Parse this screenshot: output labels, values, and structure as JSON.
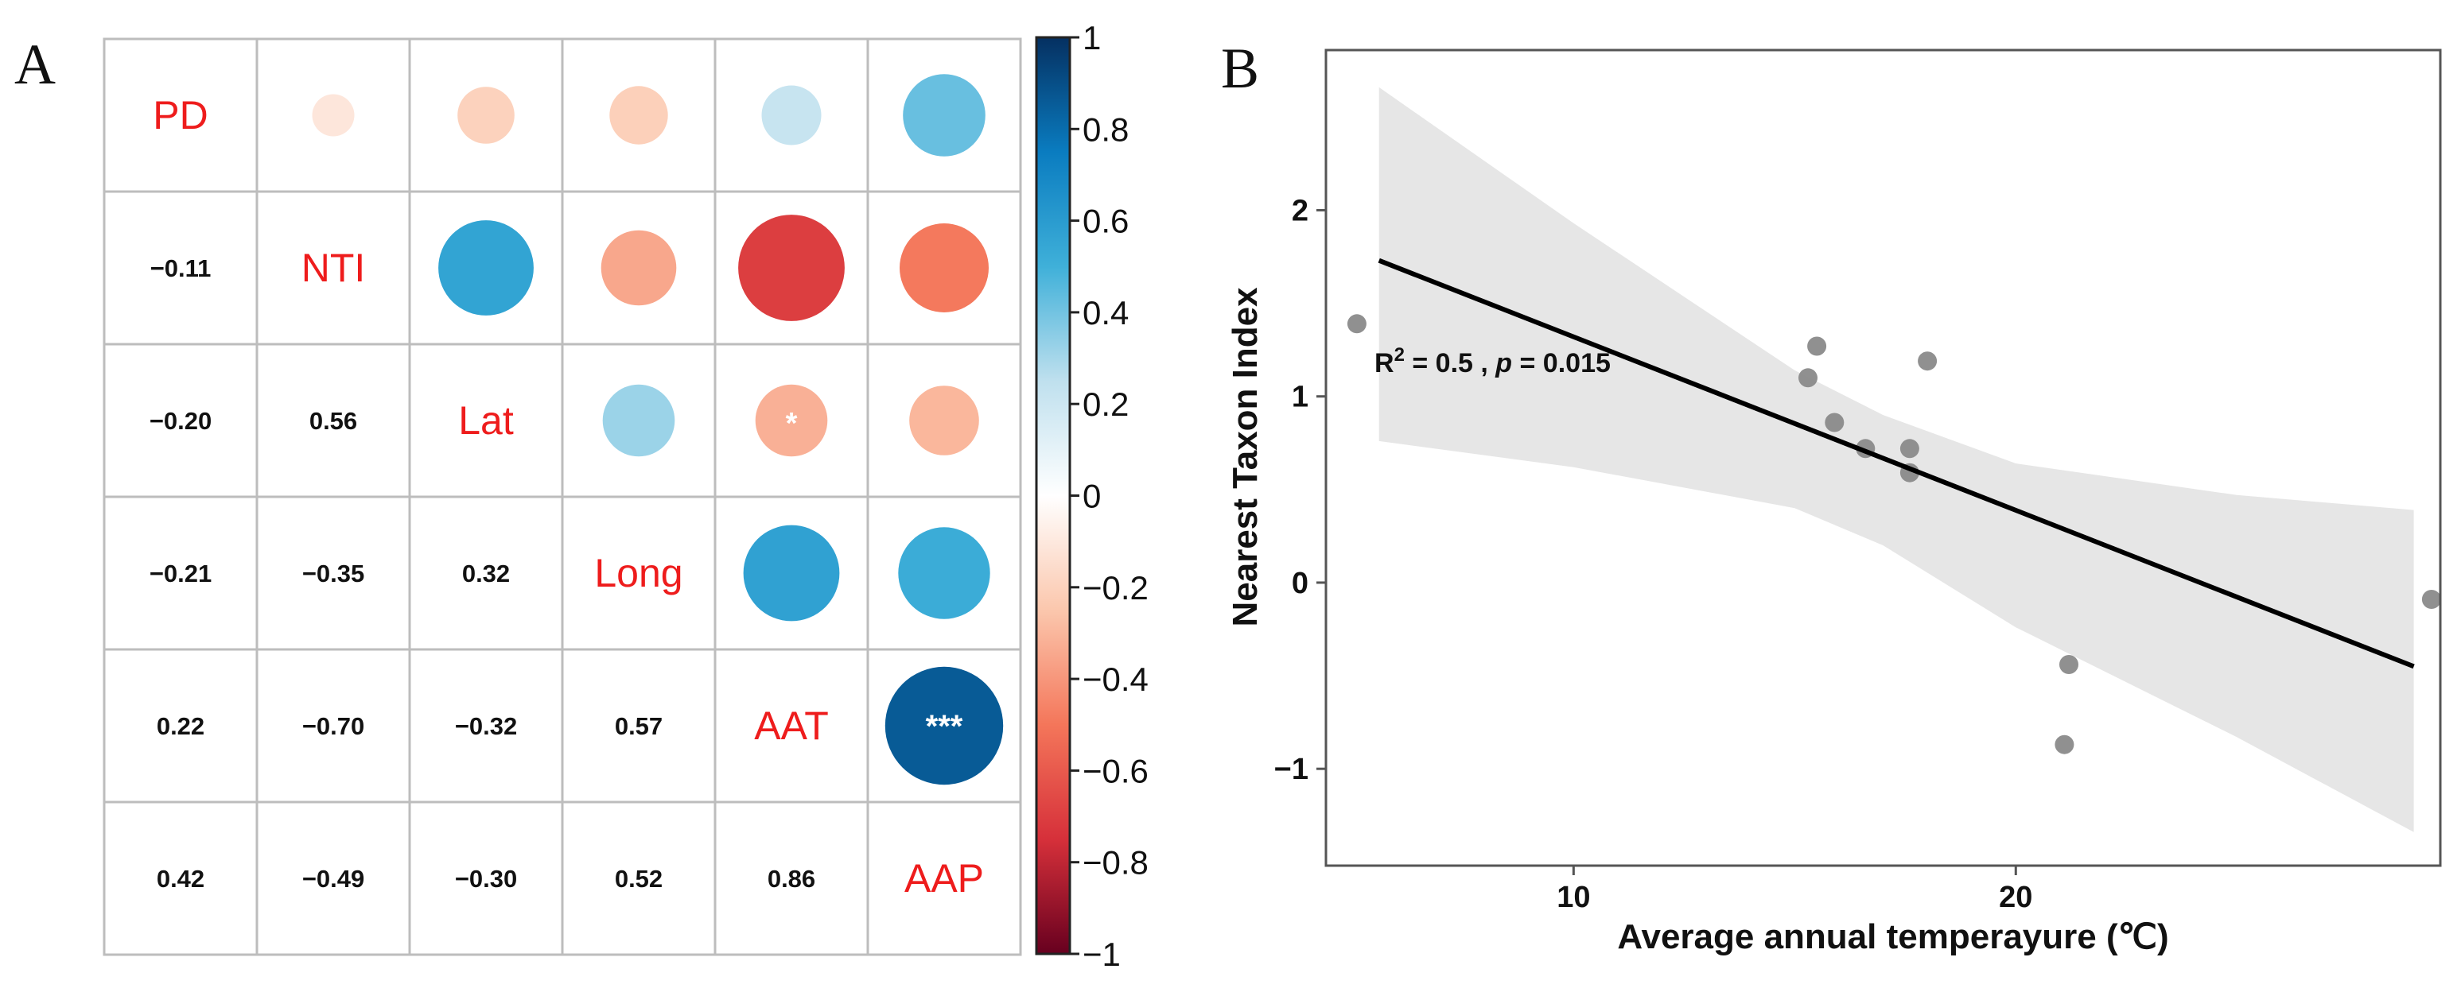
{
  "panel_a": {
    "letter": "A",
    "chart_data": {
      "type": "correlation-matrix",
      "variables": [
        "PD",
        "NTI",
        "Lat",
        "Long",
        "AAT",
        "AAP"
      ],
      "matrix": [
        [
          1,
          -0.11,
          -0.2,
          -0.21,
          0.22,
          0.42
        ],
        [
          -0.11,
          1,
          0.56,
          -0.35,
          -0.7,
          -0.49
        ],
        [
          -0.2,
          0.56,
          1,
          0.32,
          -0.32,
          -0.3
        ],
        [
          -0.21,
          -0.35,
          0.32,
          1,
          0.57,
          0.52
        ],
        [
          0.22,
          -0.7,
          -0.32,
          0.57,
          1,
          0.86
        ],
        [
          0.42,
          -0.49,
          -0.3,
          0.52,
          0.86,
          1
        ]
      ],
      "lower_text": [
        [
          "",
          "",
          "",
          "",
          "",
          ""
        ],
        [
          "−0.11",
          "",
          "",
          "",
          "",
          ""
        ],
        [
          "−0.20",
          "0.56",
          "",
          "",
          "",
          ""
        ],
        [
          "−0.21",
          "−0.35",
          "0.32",
          "",
          "",
          ""
        ],
        [
          "0.22",
          "−0.70",
          "−0.32",
          "0.57",
          "",
          ""
        ],
        [
          "0.42",
          "−0.49",
          "−0.30",
          "0.52",
          "0.86",
          ""
        ]
      ],
      "significance": [
        {
          "row": 2,
          "col": 4,
          "mark": "*"
        },
        {
          "row": 4,
          "col": 5,
          "mark": "***"
        }
      ],
      "colorbar": {
        "range": [
          -1,
          1
        ],
        "ticks": [
          1,
          0.8,
          0.6,
          0.4,
          0.2,
          0,
          -0.2,
          -0.4,
          -0.6,
          -0.8,
          -1
        ],
        "tick_labels": [
          "1",
          "0.8",
          "0.6",
          "0.4",
          "0.2",
          "0",
          "−0.2",
          "−0.4",
          "−0.6",
          "−0.8",
          "−1"
        ],
        "stops": [
          {
            "v": -1,
            "color": "#67001f"
          },
          {
            "v": -0.75,
            "color": "#d6303a"
          },
          {
            "v": -0.5,
            "color": "#f4765a"
          },
          {
            "v": -0.25,
            "color": "#fbc7ad"
          },
          {
            "v": 0,
            "color": "#ffffff"
          },
          {
            "v": 0.25,
            "color": "#bfe0ee"
          },
          {
            "v": 0.5,
            "color": "#3fb0d9"
          },
          {
            "v": 0.75,
            "color": "#0a7cc0"
          },
          {
            "v": 1,
            "color": "#053061"
          }
        ]
      }
    }
  },
  "panel_b": {
    "letter": "B",
    "chart_data": {
      "type": "scatter",
      "xlabel": "Average annual temperayure (℃)",
      "ylabel": "Nearest Taxon Index",
      "xlim": [
        4.4,
        29.6
      ],
      "ylim": [
        -1.52,
        2.86
      ],
      "xticks": [
        10,
        20
      ],
      "yticks": [
        2,
        1,
        0,
        -1
      ],
      "ytick_labels": [
        "2",
        "1",
        "0",
        "−1"
      ],
      "points": [
        {
          "x": 5.1,
          "y": 1.39
        },
        {
          "x": 15.5,
          "y": 1.27
        },
        {
          "x": 15.3,
          "y": 1.1
        },
        {
          "x": 18.0,
          "y": 1.19
        },
        {
          "x": 15.9,
          "y": 0.86
        },
        {
          "x": 16.6,
          "y": 0.72
        },
        {
          "x": 17.6,
          "y": 0.72
        },
        {
          "x": 17.6,
          "y": 0.59
        },
        {
          "x": 21.2,
          "y": -0.44
        },
        {
          "x": 21.1,
          "y": -0.87
        },
        {
          "x": 29.4,
          "y": -0.09
        }
      ],
      "fit_line": {
        "x": [
          5.6,
          29.0
        ],
        "y": [
          1.73,
          -0.45
        ]
      },
      "confidence_band": {
        "x": [
          5.6,
          10,
          15,
          17,
          20,
          25,
          29.0
        ],
        "upper": [
          2.66,
          1.93,
          1.14,
          0.9,
          0.64,
          0.47,
          0.39
        ],
        "lower": [
          0.76,
          0.62,
          0.4,
          0.2,
          -0.24,
          -0.83,
          -1.34
        ]
      },
      "annotation": {
        "r_label": "R",
        "r_sup": "2",
        "mid": " = 0.5 , ",
        "p_italic": "p",
        "p_value": " = 0.015"
      }
    }
  }
}
